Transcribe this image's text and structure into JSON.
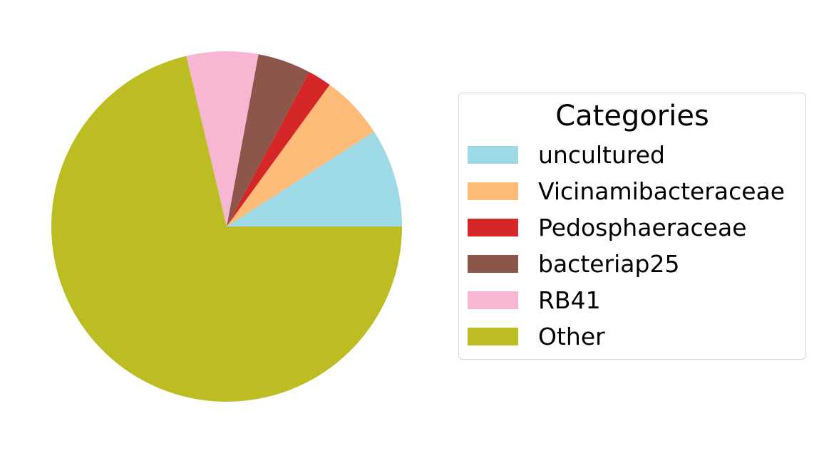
{
  "chart_data": {
    "type": "pie",
    "title": "",
    "start_angle_deg": 0,
    "direction": "counterclockwise",
    "slices": [
      {
        "label": "uncultured",
        "value": 9.1,
        "color": "#9edae5"
      },
      {
        "label": "Vicinamibacteraceae",
        "value": 5.9,
        "color": "#ffbb78"
      },
      {
        "label": "Pedosphaeraceae",
        "value": 2.2,
        "color": "#d62728"
      },
      {
        "label": "bacteriap25",
        "value": 4.9,
        "color": "#8c564b"
      },
      {
        "label": "RB41",
        "value": 6.6,
        "color": "#f7b6d2"
      },
      {
        "label": "Other",
        "value": 71.3,
        "color": "#bcbd22"
      }
    ],
    "legend": {
      "title": "Categories",
      "placement": "right"
    }
  }
}
